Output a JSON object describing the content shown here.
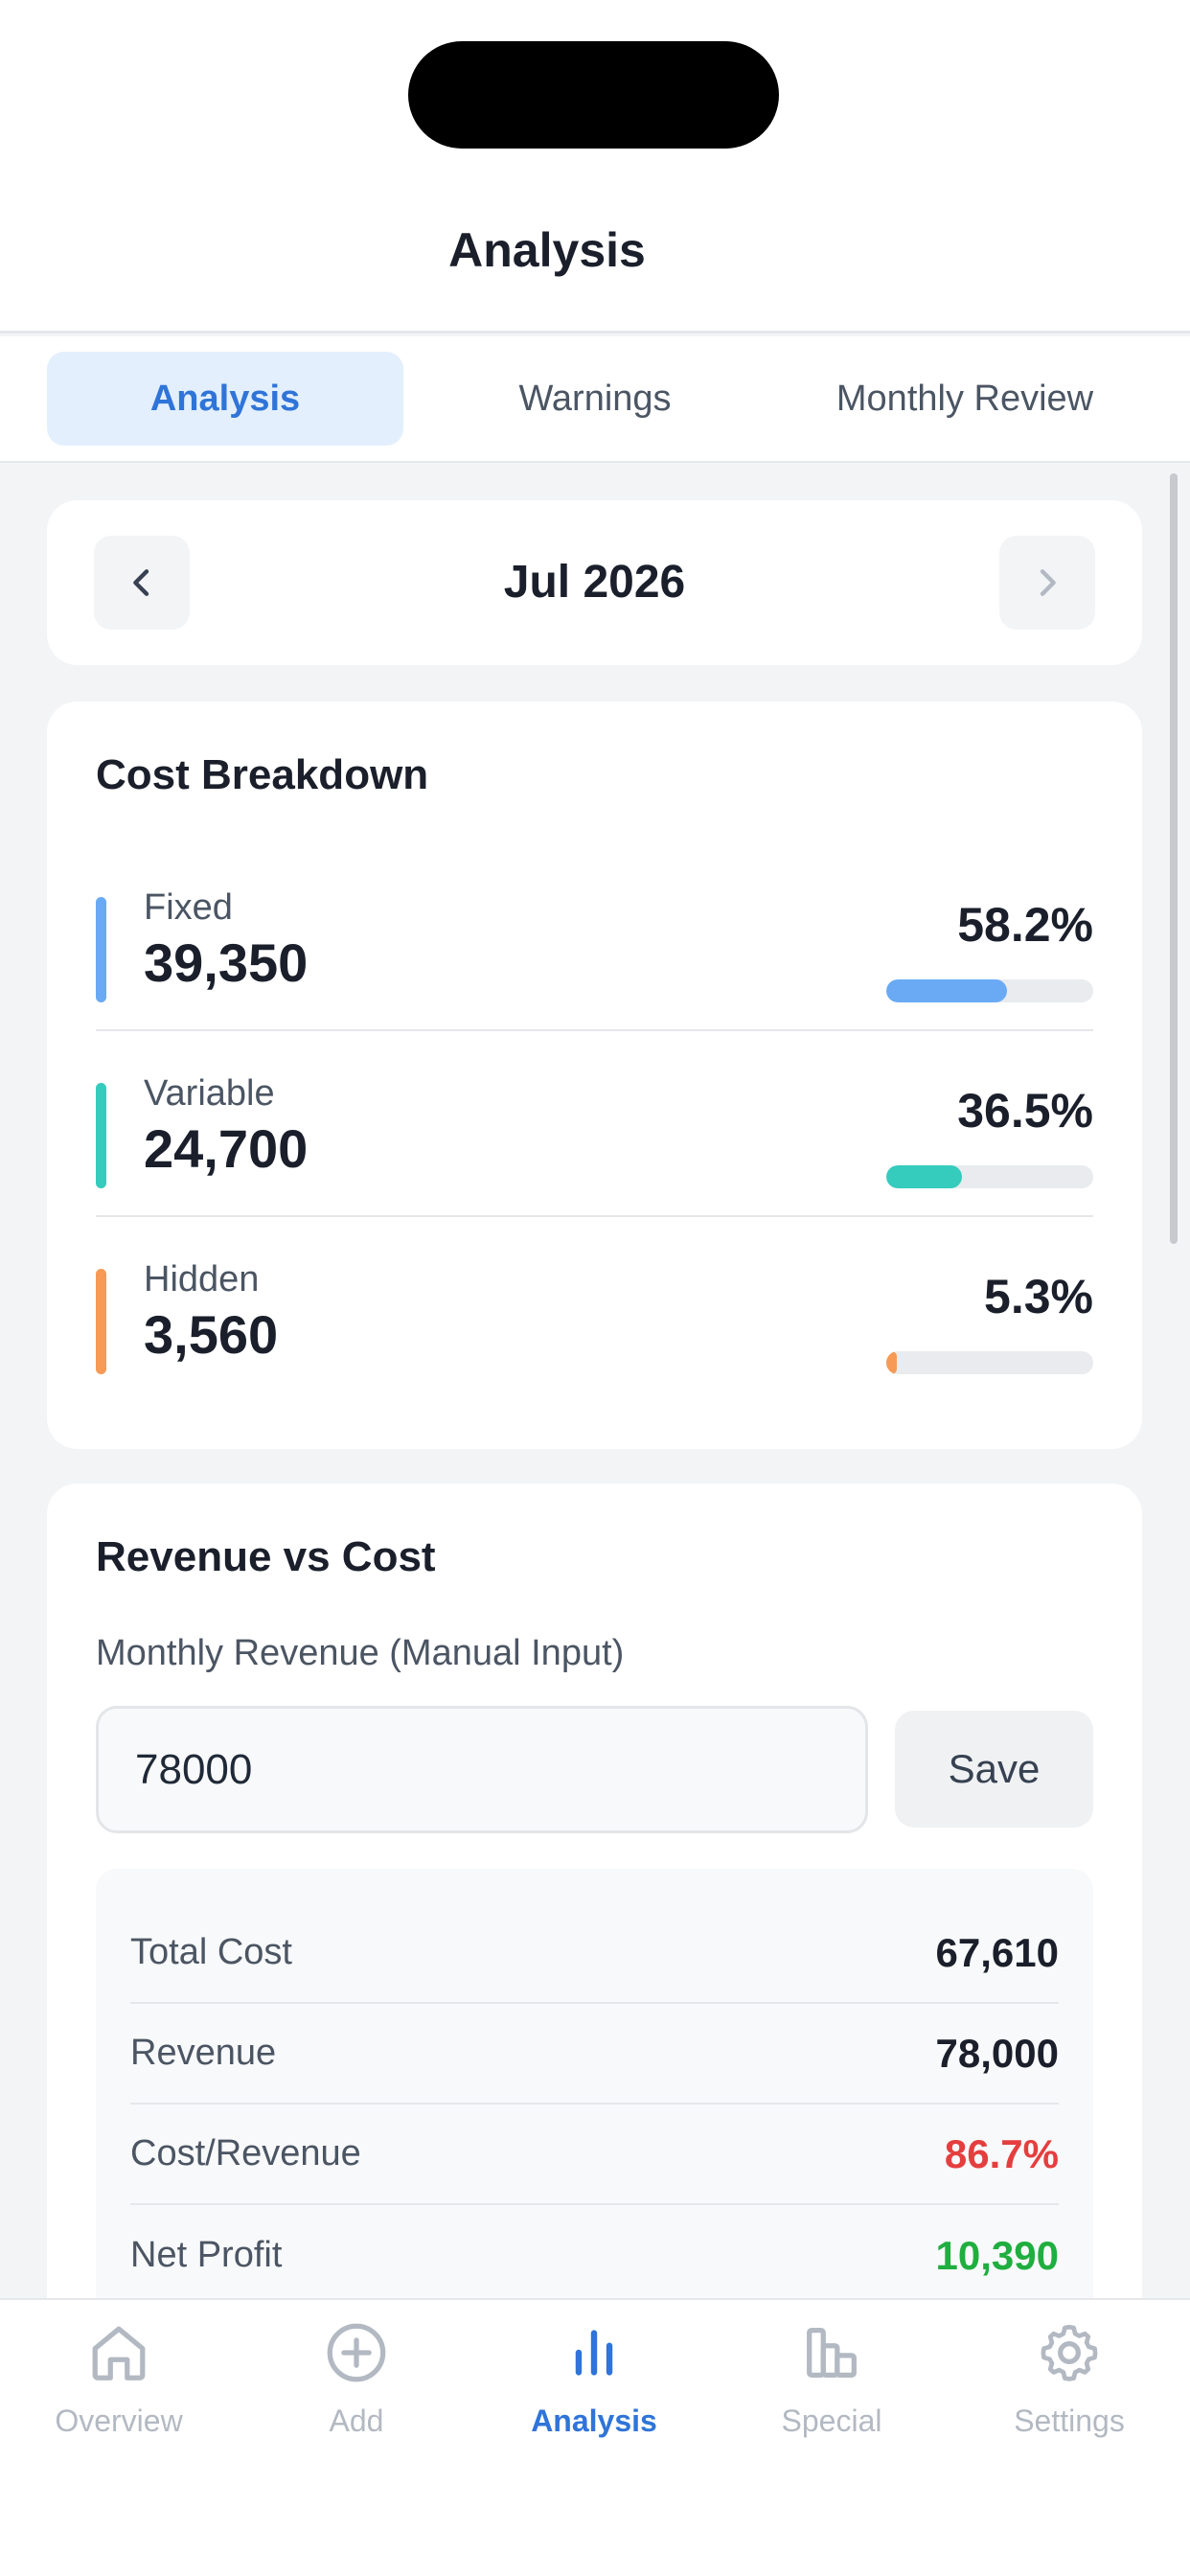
{
  "header": {
    "title": "Analysis"
  },
  "tabs": [
    {
      "label": "Analysis",
      "active": true
    },
    {
      "label": "Warnings",
      "active": false
    },
    {
      "label": "Monthly Review",
      "active": false
    }
  ],
  "month_selector": {
    "label": "Jul 2026",
    "prev_icon": "chevron-left-icon",
    "next_icon": "chevron-right-icon"
  },
  "cost_breakdown": {
    "title": "Cost Breakdown",
    "items": [
      {
        "name": "Fixed",
        "amount": "39,350",
        "percent": "58.2%",
        "fraction": 0.582,
        "color": "#6aaaf5"
      },
      {
        "name": "Variable",
        "amount": "24,700",
        "percent": "36.5%",
        "fraction": 0.365,
        "color": "#35cbbd"
      },
      {
        "name": "Hidden",
        "amount": "3,560",
        "percent": "5.3%",
        "fraction": 0.053,
        "color": "#f69a55"
      }
    ]
  },
  "revenue_vs_cost": {
    "title": "Revenue vs Cost",
    "input_label": "Monthly Revenue (Manual Input)",
    "input_value": "78000",
    "save_label": "Save",
    "summary": [
      {
        "label": "Total Cost",
        "value": "67,610",
        "color": "#1a1f2b"
      },
      {
        "label": "Revenue",
        "value": "78,000",
        "color": "#1a1f2b"
      },
      {
        "label": "Cost/Revenue",
        "value": "86.7%",
        "color": "#e53e3e"
      },
      {
        "label": "Net Profit",
        "value": "10,390",
        "color": "#1fae3f"
      }
    ]
  },
  "bottom_nav": [
    {
      "label": "Overview",
      "icon": "home-icon",
      "active": false
    },
    {
      "label": "Add",
      "icon": "plus-circle-icon",
      "active": false
    },
    {
      "label": "Analysis",
      "icon": "bar-chart-icon",
      "active": true
    },
    {
      "label": "Special",
      "icon": "building-icon",
      "active": false
    },
    {
      "label": "Settings",
      "icon": "gear-icon",
      "active": false
    }
  ],
  "colors": {
    "accent": "#2f74d8",
    "inactive": "#b3b9c2",
    "background": "#f3f4f6"
  }
}
